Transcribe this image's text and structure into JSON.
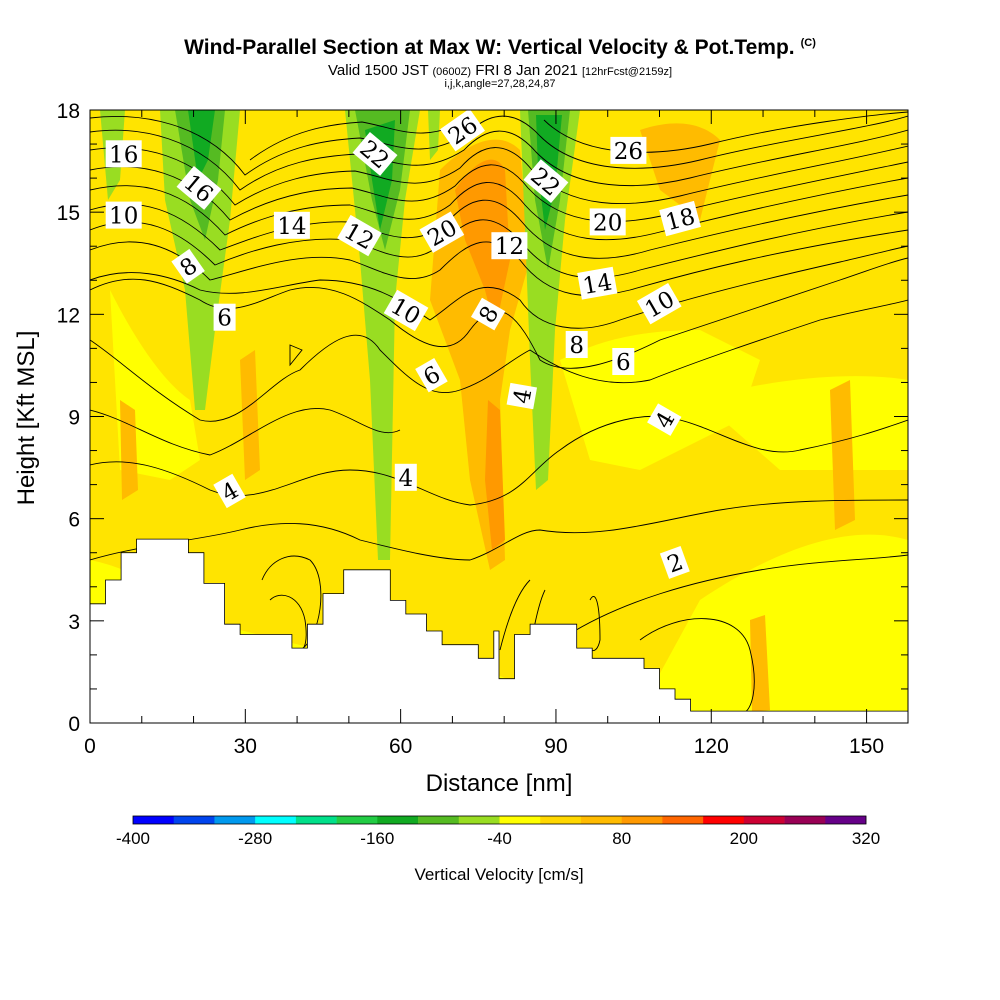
{
  "header": {
    "title": "Wind-Parallel Section at Max W: Vertical Velocity & Pot.Temp.",
    "title_mark": "(C)",
    "valid_prefix": "Valid 1500 JST",
    "valid_z": "(0600Z)",
    "valid_date": "FRI 8 Jan 2021",
    "forecast": "[12hrFcst@2159z]",
    "indices": "i,j,k,angle=27,28,24,87"
  },
  "chart_data": {
    "type": "heatmap",
    "xlabel": "Distance [nm]",
    "ylabel": "Height [Kft MSL]",
    "xlim": [
      0,
      158
    ],
    "ylim": [
      0,
      18
    ],
    "x_ticks": [
      "0",
      "30",
      "60",
      "90",
      "120",
      "150"
    ],
    "x_tick_values": [
      0,
      30,
      60,
      90,
      120,
      150
    ],
    "y_ticks": [
      "0",
      "3",
      "6",
      "9",
      "12",
      "15",
      "18"
    ],
    "y_tick_values": [
      0,
      3,
      6,
      9,
      12,
      15,
      18
    ],
    "colorbar": {
      "label": "Vertical Velocity [cm/s]",
      "min": -400,
      "max": 340,
      "step": 40,
      "tick_labels": [
        "-400",
        "-280",
        "-160",
        "-40",
        "80",
        "200",
        "320"
      ],
      "tick_values": [
        -400,
        -280,
        -160,
        -40,
        80,
        200,
        320
      ],
      "colors": [
        "#0000ff",
        "#0044ee",
        "#0099ee",
        "#00ffff",
        "#00e08a",
        "#22cc44",
        "#11aa22",
        "#55bb22",
        "#99dd22",
        "#ffff00",
        "#ffd700",
        "#ffbb00",
        "#ff9900",
        "#ff6600",
        "#ff0000",
        "#cc0033",
        "#990055",
        "#660088"
      ]
    },
    "terrain": [
      [
        0,
        3.5
      ],
      [
        3,
        3.5
      ],
      [
        3,
        4.2
      ],
      [
        6,
        4.2
      ],
      [
        6,
        5.0
      ],
      [
        9,
        5.0
      ],
      [
        9,
        5.4
      ],
      [
        19,
        5.4
      ],
      [
        19,
        5.0
      ],
      [
        22,
        5.0
      ],
      [
        22,
        4.1
      ],
      [
        26,
        4.1
      ],
      [
        26,
        2.9
      ],
      [
        29,
        2.9
      ],
      [
        29,
        2.6
      ],
      [
        39,
        2.6
      ],
      [
        39,
        2.2
      ],
      [
        42,
        2.2
      ],
      [
        42,
        2.9
      ],
      [
        45,
        2.9
      ],
      [
        45,
        3.8
      ],
      [
        49,
        3.8
      ],
      [
        49,
        4.5
      ],
      [
        58,
        4.5
      ],
      [
        58,
        3.6
      ],
      [
        61,
        3.6
      ],
      [
        61,
        3.2
      ],
      [
        65,
        3.2
      ],
      [
        65,
        2.7
      ],
      [
        68,
        2.7
      ],
      [
        68,
        2.3
      ],
      [
        75,
        2.3
      ],
      [
        75,
        1.9
      ],
      [
        78,
        1.9
      ],
      [
        78,
        2.7
      ],
      [
        79,
        2.7
      ],
      [
        79,
        1.3
      ],
      [
        82,
        1.3
      ],
      [
        82,
        2.6
      ],
      [
        85,
        2.6
      ],
      [
        85,
        2.9
      ],
      [
        94,
        2.9
      ],
      [
        94,
        2.2
      ],
      [
        97,
        2.2
      ],
      [
        97,
        1.9
      ],
      [
        107,
        1.9
      ],
      [
        107,
        1.6
      ],
      [
        110,
        1.6
      ],
      [
        110,
        1.0
      ],
      [
        113,
        1.0
      ],
      [
        113,
        0.7
      ],
      [
        116,
        0.7
      ],
      [
        116,
        0.35
      ],
      [
        158,
        0.35
      ]
    ],
    "theta_labels": [
      {
        "text": "16",
        "x": 6.5,
        "y": 16.7,
        "angle": 0
      },
      {
        "text": "10",
        "x": 6.5,
        "y": 14.9,
        "angle": 0
      },
      {
        "text": "16",
        "x": 21,
        "y": 15.7,
        "angle": 40
      },
      {
        "text": "8",
        "x": 19,
        "y": 13.4,
        "angle": -35
      },
      {
        "text": "6",
        "x": 26,
        "y": 11.9,
        "angle": 0
      },
      {
        "text": "14",
        "x": 39,
        "y": 14.6,
        "angle": 0
      },
      {
        "text": "22",
        "x": 55,
        "y": 16.7,
        "angle": 40
      },
      {
        "text": "12",
        "x": 52,
        "y": 14.3,
        "angle": 30
      },
      {
        "text": "10",
        "x": 61,
        "y": 12.1,
        "angle": 30
      },
      {
        "text": "6",
        "x": 66,
        "y": 10.2,
        "angle": -30
      },
      {
        "text": "26",
        "x": 72,
        "y": 17.4,
        "angle": -35
      },
      {
        "text": "20",
        "x": 68,
        "y": 14.4,
        "angle": -30
      },
      {
        "text": "12",
        "x": 81,
        "y": 14.0,
        "angle": 0
      },
      {
        "text": "8",
        "x": 77,
        "y": 12.0,
        "angle": -60
      },
      {
        "text": "4",
        "x": 83.5,
        "y": 9.6,
        "angle": -80
      },
      {
        "text": "22",
        "x": 88,
        "y": 15.9,
        "angle": 40
      },
      {
        "text": "26",
        "x": 104,
        "y": 16.8,
        "angle": 0
      },
      {
        "text": "20",
        "x": 100,
        "y": 14.7,
        "angle": 0
      },
      {
        "text": "18",
        "x": 114,
        "y": 14.8,
        "angle": -15
      },
      {
        "text": "14",
        "x": 98,
        "y": 12.9,
        "angle": -10
      },
      {
        "text": "10",
        "x": 110,
        "y": 12.3,
        "angle": -30
      },
      {
        "text": "8",
        "x": 94,
        "y": 11.1,
        "angle": 0
      },
      {
        "text": "6",
        "x": 103,
        "y": 10.6,
        "angle": 0
      },
      {
        "text": "4",
        "x": 111,
        "y": 8.9,
        "angle": -60
      },
      {
        "text": "4",
        "x": 27,
        "y": 6.8,
        "angle": -30
      },
      {
        "text": "4",
        "x": 61,
        "y": 7.2,
        "angle": 0
      },
      {
        "text": "2",
        "x": 113,
        "y": 4.7,
        "angle": -20
      }
    ]
  }
}
